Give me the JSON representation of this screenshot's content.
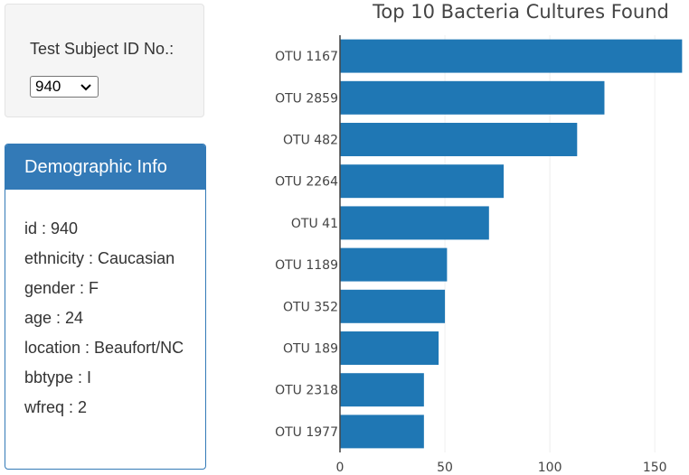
{
  "selector": {
    "label": "Test Subject ID No.:",
    "selected_value": "940"
  },
  "demographics": {
    "heading": "Demographic Info",
    "items": [
      {
        "key": "id",
        "text": "id : 940"
      },
      {
        "key": "ethnicity",
        "text": "ethnicity : Caucasian"
      },
      {
        "key": "gender",
        "text": "gender : F"
      },
      {
        "key": "age",
        "text": "age : 24"
      },
      {
        "key": "location",
        "text": "location : Beaufort/NC"
      },
      {
        "key": "bbtype",
        "text": "bbtype : I"
      },
      {
        "key": "wfreq",
        "text": "wfreq : 2"
      }
    ]
  },
  "colors": {
    "bar": "#1f77b4",
    "panel_accent": "#337ab7",
    "grid": "#eeeeee"
  },
  "chart_data": {
    "type": "bar",
    "orientation": "horizontal",
    "title": "Top 10 Bacteria Cultures Found",
    "categories": [
      "OTU 1167",
      "OTU 2859",
      "OTU 482",
      "OTU 2264",
      "OTU 41",
      "OTU 1189",
      "OTU 352",
      "OTU 189",
      "OTU 2318",
      "OTU 1977"
    ],
    "values": [
      163,
      126,
      113,
      78,
      71,
      51,
      50,
      47,
      40,
      40
    ],
    "xlim": [
      0,
      165
    ],
    "xticks": [
      0,
      50,
      100,
      150
    ],
    "grid": true
  }
}
